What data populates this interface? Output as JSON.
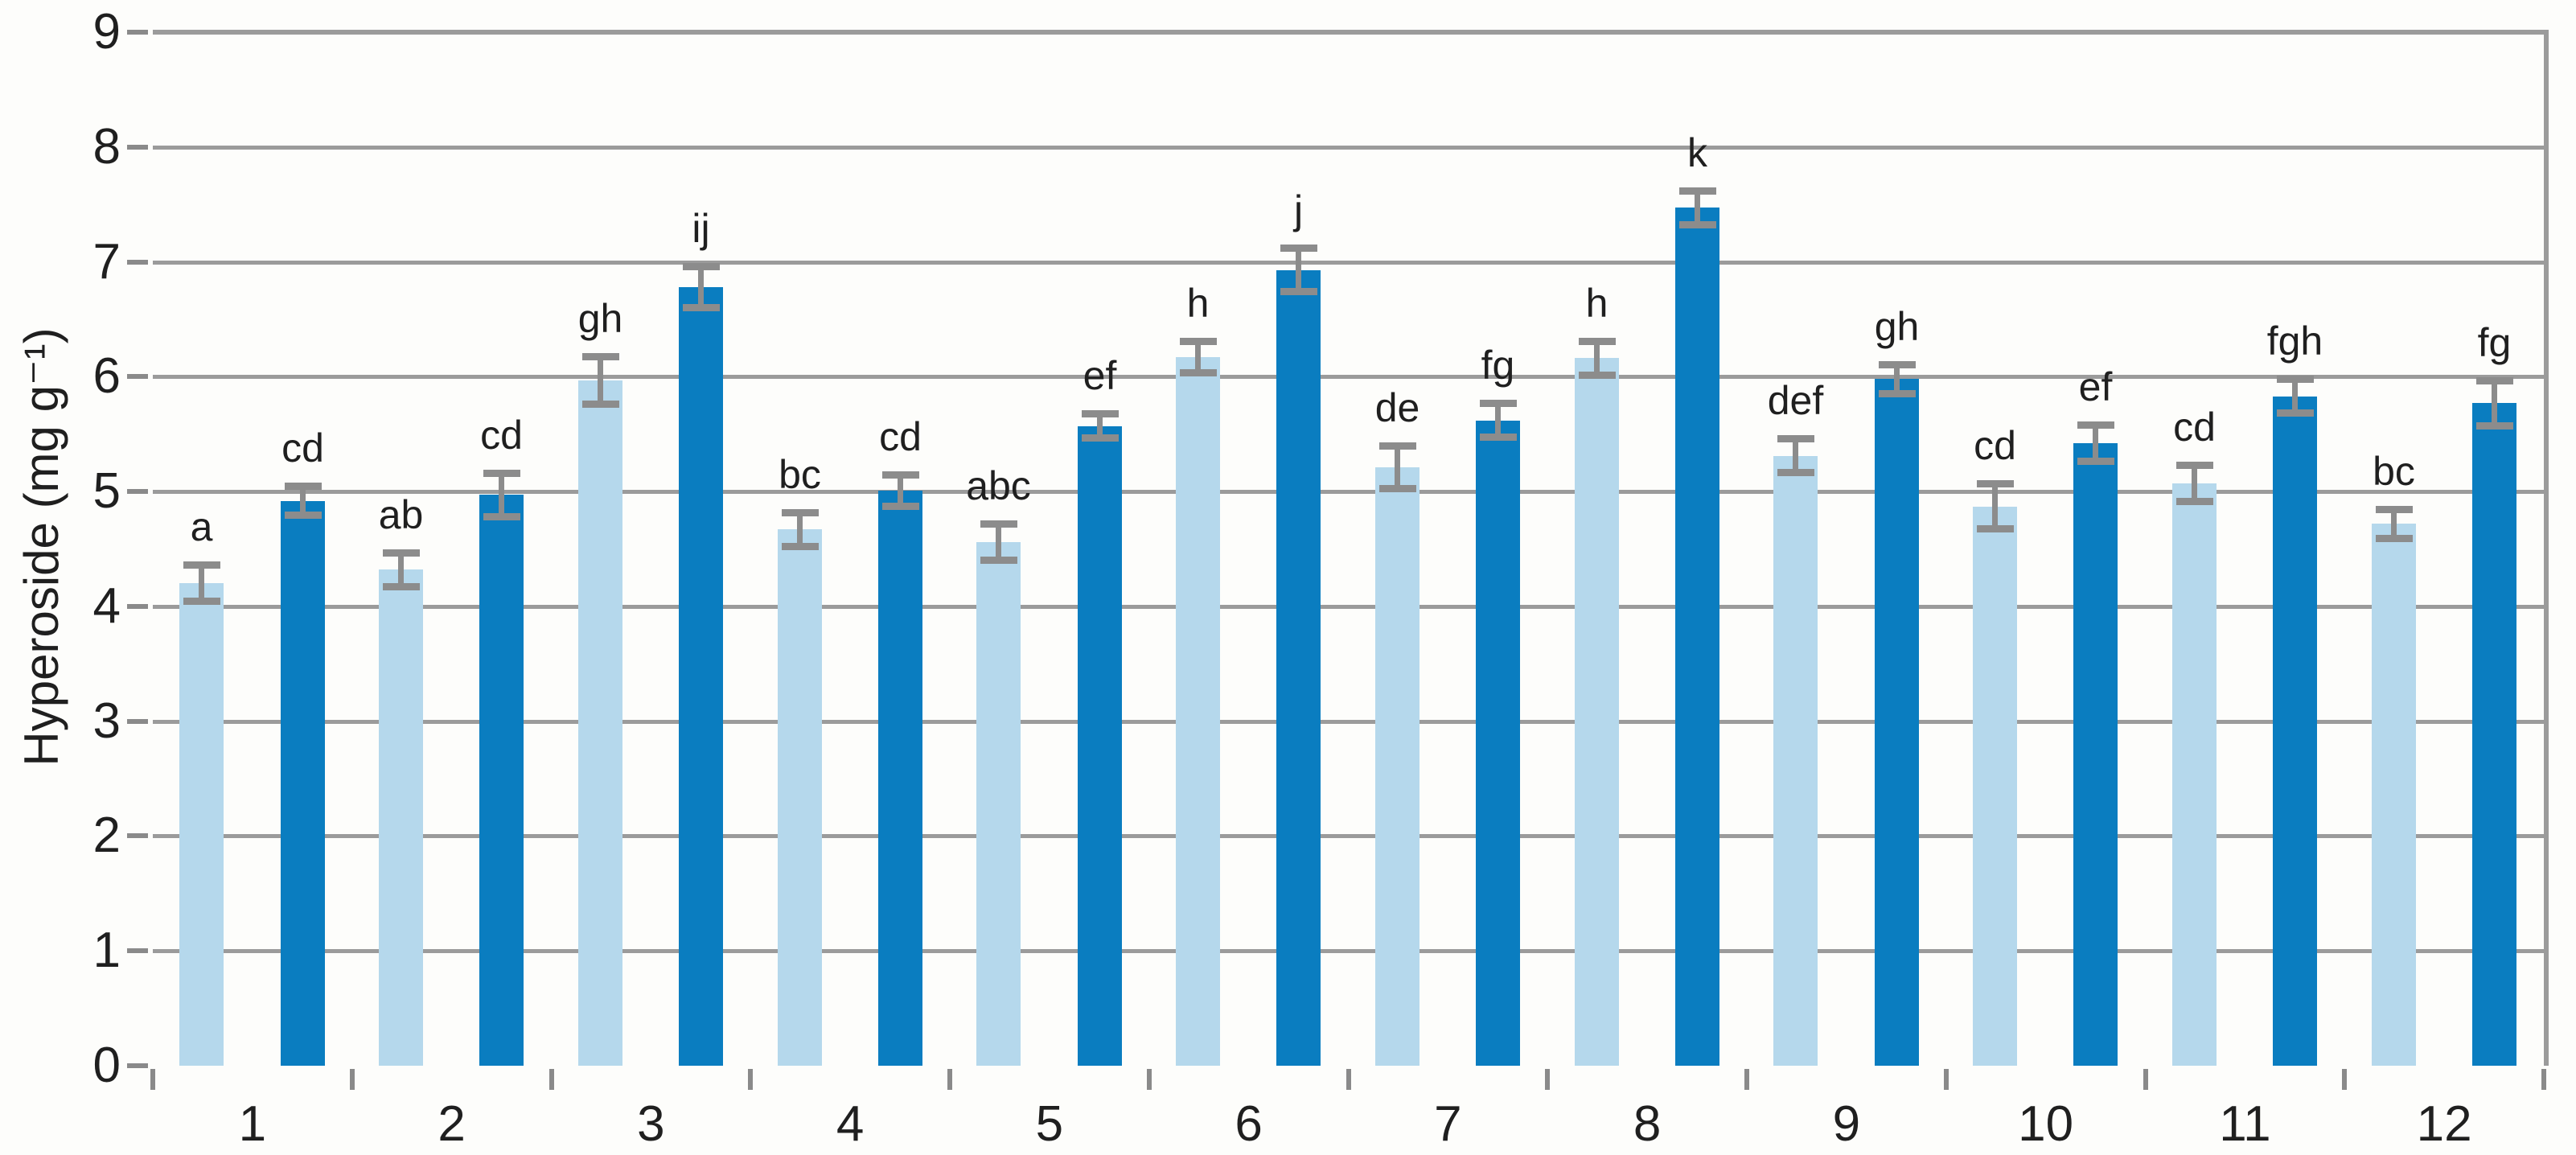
{
  "chart_data": {
    "type": "bar",
    "title": "",
    "xlabel": "",
    "ylabel": "Hyperoside (mg g⁻¹)",
    "ylim": [
      0,
      9
    ],
    "yticks": [
      0,
      1,
      2,
      3,
      4,
      5,
      6,
      7,
      8,
      9
    ],
    "categories": [
      "1",
      "2",
      "3",
      "4",
      "5",
      "6",
      "7",
      "8",
      "9",
      "10",
      "11",
      "12"
    ],
    "grid": true,
    "legend_position": "none",
    "series": [
      {
        "name": "light-blue-bars",
        "color": "#b5d8ec",
        "values": [
          4.2,
          4.32,
          5.97,
          4.67,
          4.56,
          6.17,
          5.21,
          6.16,
          5.31,
          4.87,
          5.07,
          4.72
        ],
        "errors": [
          0.16,
          0.15,
          0.21,
          0.15,
          0.16,
          0.14,
          0.19,
          0.15,
          0.15,
          0.2,
          0.16,
          0.13
        ],
        "sig_labels": [
          "a",
          "ab",
          "gh",
          "bc",
          "abc",
          "h",
          "de",
          "h",
          "def",
          "cd",
          "cd",
          "bc"
        ]
      },
      {
        "name": "dark-blue-bars",
        "color": "#0a7dc0",
        "values": [
          4.92,
          4.97,
          6.78,
          5.01,
          5.57,
          6.93,
          5.62,
          7.47,
          5.98,
          5.42,
          5.83,
          5.77
        ],
        "errors": [
          0.13,
          0.19,
          0.18,
          0.14,
          0.11,
          0.19,
          0.15,
          0.15,
          0.13,
          0.16,
          0.15,
          0.2
        ],
        "sig_labels": [
          "cd",
          "cd",
          "ij",
          "cd",
          "ef",
          "j",
          "fg",
          "k",
          "gh",
          "ef",
          "fgh",
          "fg"
        ]
      }
    ],
    "colors": {
      "gridline": "#9b9b9b",
      "axis": "#8a8a8a",
      "error_bar": "#8c8c8c",
      "text": "#1f1f1f",
      "background": "#fdfdfb"
    }
  }
}
